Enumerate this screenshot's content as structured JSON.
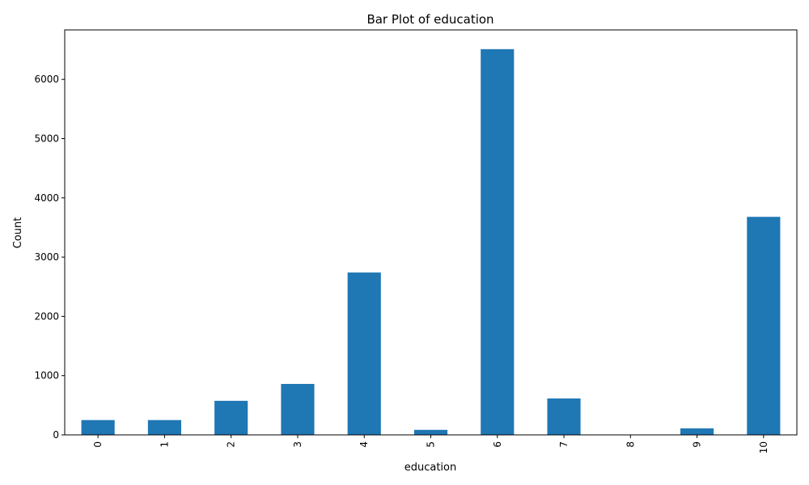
{
  "chart_data": {
    "type": "bar",
    "title": "Bar Plot of education",
    "xlabel": "education",
    "ylabel": "Count",
    "categories": [
      "0",
      "1",
      "2",
      "3",
      "4",
      "5",
      "6",
      "7",
      "8",
      "9",
      "10"
    ],
    "values": [
      250,
      250,
      575,
      860,
      2740,
      85,
      6510,
      615,
      5,
      110,
      3680
    ],
    "ylim": [
      0,
      6835
    ],
    "yticks": [
      "0",
      "1000",
      "2000",
      "3000",
      "4000",
      "5000",
      "6000"
    ],
    "bar_color": "#1f77b4",
    "grid": false,
    "legend": "none"
  }
}
